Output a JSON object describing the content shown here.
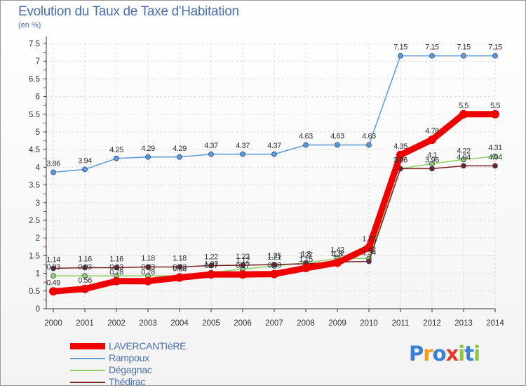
{
  "header": {
    "title": "Evolution du Taux de Taxe d'Habitation",
    "unit": "(en %)"
  },
  "chart_data": {
    "type": "line",
    "x": [
      "2000",
      "2001",
      "2002",
      "2003",
      "2004",
      "2005",
      "2006",
      "2007",
      "2008",
      "2009",
      "2010",
      "2011",
      "2012",
      "2013",
      "2014"
    ],
    "yticks": [
      "0",
      "0.5",
      "1",
      "1.5",
      "2",
      "2.5",
      "3",
      "3.5",
      "4",
      "4.5",
      "5",
      "5.5",
      "6",
      "6.5",
      "7",
      "7.5"
    ],
    "ylim": [
      0,
      7.5
    ],
    "grid": true,
    "legend_position": "bottom-left",
    "series": [
      {
        "name": "LAVERCANTIèRE",
        "color": "#ee0000",
        "values": [
          0.49,
          0.56,
          0.78,
          0.78,
          0.88,
          0.97,
          0.97,
          0.98,
          1.15,
          1.3,
          1.73,
          4.35,
          4.78,
          5.5,
          5.5
        ],
        "labels": [
          "0.49",
          "0.56",
          "0.78",
          "0.78",
          "0.88",
          "0.97",
          "0.97",
          "0.98",
          "1.15",
          "1.3",
          "1.73",
          "4.35",
          "4.78",
          "5.5",
          "5.5"
        ]
      },
      {
        "name": "Rampoux",
        "color": "#5a9bd5",
        "values": [
          3.86,
          3.94,
          4.25,
          4.29,
          4.29,
          4.37,
          4.37,
          4.37,
          4.63,
          4.63,
          4.63,
          7.15,
          7.15,
          7.15,
          7.15
        ],
        "labels": [
          "3.86",
          "3.94",
          "4.25",
          "4.29",
          "4.29",
          "4.37",
          "4.37",
          "4.37",
          "4.63",
          "4.63",
          "4.63",
          "7.15",
          "7.15",
          "7.15",
          "7.15"
        ]
      },
      {
        "name": "Dégagnac",
        "color": "#90d060",
        "values": [
          0.93,
          0.93,
          0.93,
          0.93,
          0.93,
          1.02,
          1.12,
          1.21,
          1.3,
          1.42,
          1.42,
          3.96,
          4.1,
          4.22,
          4.31
        ],
        "labels": [
          "0.93",
          "0.93",
          "0.93",
          "0.93",
          "0.93",
          "1.02",
          "1.12",
          "1.21",
          "1.3",
          "1.42",
          "1.42",
          "3.96",
          "4.1",
          "4.22",
          "4.31"
        ]
      },
      {
        "name": "Thédirac",
        "color": "#7a2020",
        "values": [
          1.14,
          1.16,
          1.16,
          1.18,
          1.18,
          1.22,
          1.23,
          1.25,
          1.27,
          1.32,
          1.34,
          3.96,
          3.96,
          4.04,
          4.04
        ],
        "labels": [
          "1.14",
          "1.16",
          "1.16",
          "1.18",
          "1.18",
          "1.22",
          "1.23",
          "1.25",
          "1.27",
          "1.32",
          "1.34",
          "3.96",
          "3.96",
          "4.04",
          "4.04"
        ]
      }
    ]
  },
  "logo": {
    "letters": [
      {
        "ch": "P",
        "color": "#3b7fd0"
      },
      {
        "ch": "r",
        "color": "#f29b1e"
      },
      {
        "ch": "o",
        "color": "#3b7fd0"
      },
      {
        "ch": "x",
        "color": "#e03a2e"
      },
      {
        "ch": "i",
        "color": "#8cc63f"
      },
      {
        "ch": "t",
        "color": "#3b7fd0"
      },
      {
        "ch": "i",
        "color": "#8cc63f"
      }
    ]
  }
}
